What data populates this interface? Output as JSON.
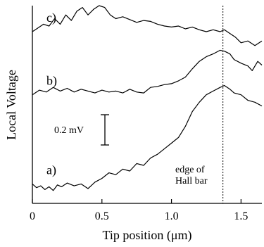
{
  "chart_data": {
    "type": "line",
    "xlabel": "Tip position (μm)",
    "ylabel": "Local Voltage",
    "xlim": [
      0,
      1.65
    ],
    "x_ticks": [
      "0",
      "0.5",
      "1.0",
      "1.5"
    ],
    "x_tick_values": [
      0,
      0.5,
      1.0,
      1.5
    ],
    "grid": false,
    "scale_bar": {
      "label": "0.2 mV",
      "value_mV": 0.2
    },
    "annotation": {
      "line1": "edge of",
      "line2": "Hall bar",
      "x": 1.37
    },
    "series": [
      {
        "label": "a)",
        "x": [
          0.0,
          0.03,
          0.06,
          0.09,
          0.12,
          0.15,
          0.18,
          0.21,
          0.25,
          0.3,
          0.35,
          0.4,
          0.45,
          0.5,
          0.55,
          0.6,
          0.65,
          0.7,
          0.75,
          0.8,
          0.85,
          0.9,
          0.95,
          1.0,
          1.05,
          1.1,
          1.15,
          1.2,
          1.25,
          1.3,
          1.35,
          1.38,
          1.42,
          1.45,
          1.5,
          1.55,
          1.6,
          1.65
        ],
        "y": [
          0.08,
          0.04,
          0.06,
          0.02,
          0.05,
          0.01,
          0.07,
          0.05,
          0.09,
          0.06,
          0.08,
          0.03,
          0.1,
          0.14,
          0.2,
          0.18,
          0.24,
          0.22,
          0.3,
          0.28,
          0.36,
          0.4,
          0.46,
          0.52,
          0.58,
          0.7,
          0.86,
          0.96,
          1.04,
          1.08,
          1.12,
          1.14,
          1.1,
          1.06,
          1.04,
          0.98,
          0.96,
          0.92
        ]
      },
      {
        "label": "b)",
        "x": [
          0.0,
          0.05,
          0.1,
          0.15,
          0.2,
          0.25,
          0.3,
          0.35,
          0.4,
          0.45,
          0.5,
          0.55,
          0.6,
          0.65,
          0.7,
          0.75,
          0.8,
          0.85,
          0.9,
          0.95,
          1.0,
          1.05,
          1.1,
          1.15,
          1.2,
          1.25,
          1.3,
          1.35,
          1.38,
          1.42,
          1.45,
          1.5,
          1.55,
          1.58,
          1.62,
          1.65
        ],
        "y": [
          1.04,
          1.09,
          1.07,
          1.12,
          1.08,
          1.11,
          1.07,
          1.1,
          1.08,
          1.06,
          1.09,
          1.07,
          1.08,
          1.06,
          1.1,
          1.07,
          1.06,
          1.12,
          1.13,
          1.15,
          1.16,
          1.19,
          1.23,
          1.32,
          1.4,
          1.45,
          1.48,
          1.52,
          1.51,
          1.48,
          1.42,
          1.38,
          1.35,
          1.3,
          1.4,
          1.36
        ]
      },
      {
        "label": "c)",
        "x": [
          0.0,
          0.04,
          0.08,
          0.12,
          0.16,
          0.2,
          0.24,
          0.28,
          0.32,
          0.36,
          0.4,
          0.44,
          0.48,
          0.52,
          0.56,
          0.6,
          0.65,
          0.7,
          0.75,
          0.8,
          0.85,
          0.9,
          0.95,
          1.0,
          1.05,
          1.1,
          1.15,
          1.2,
          1.25,
          1.3,
          1.35,
          1.38,
          1.42,
          1.46,
          1.5,
          1.55,
          1.6,
          1.65
        ],
        "y": [
          1.72,
          1.76,
          1.8,
          1.78,
          1.86,
          1.8,
          1.9,
          1.84,
          1.94,
          1.98,
          1.9,
          1.96,
          2.0,
          1.98,
          1.9,
          1.86,
          1.88,
          1.85,
          1.82,
          1.84,
          1.83,
          1.8,
          1.78,
          1.77,
          1.78,
          1.75,
          1.77,
          1.74,
          1.72,
          1.74,
          1.72,
          1.74,
          1.7,
          1.66,
          1.6,
          1.62,
          1.57,
          1.62
        ]
      }
    ]
  }
}
